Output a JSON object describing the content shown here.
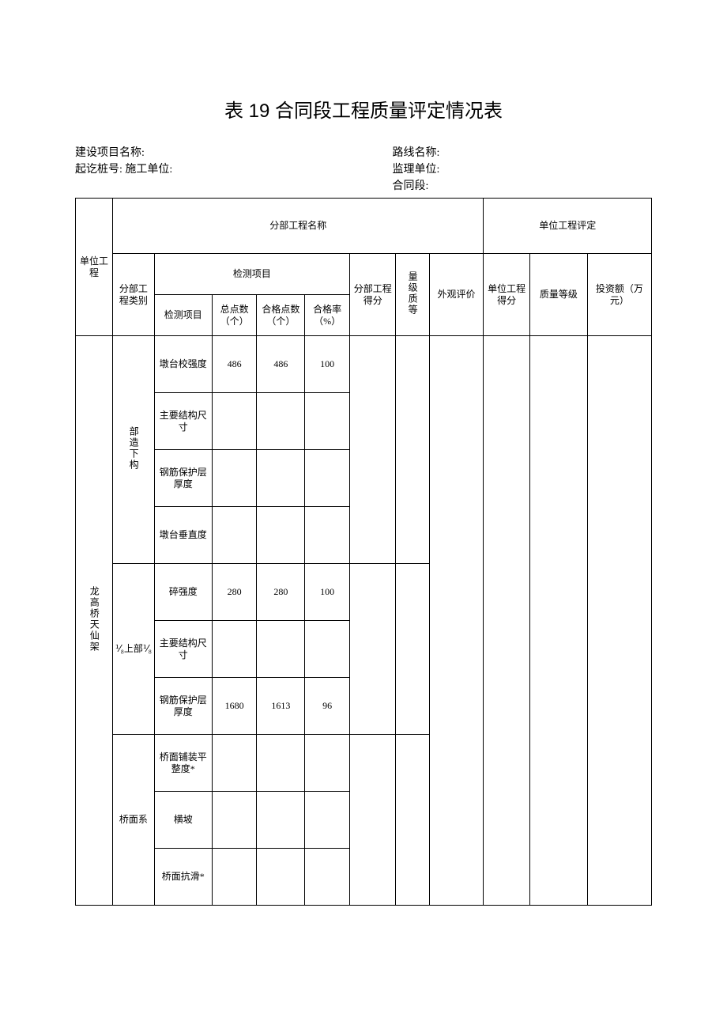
{
  "title": "表 19 合同段工程质量评定情况表",
  "meta": {
    "left1": "建设项目名称:",
    "left2": "起讫桩号: 施工单位:",
    "right1": "路线名称:",
    "right2": "监理单位:",
    "right3": "合同段:"
  },
  "headers": {
    "unit_project": "单位工程",
    "sub_project_name": "分部工程名称",
    "unit_project_eval": "单位工程评定",
    "sub_category": "分部工程类别",
    "inspection_items": "检测项目",
    "sub_score": "分部工程得分",
    "quality_level": "量级质等",
    "appearance": "外观评价",
    "unit_score": "单位工程得分",
    "quality_grade": "质量等级",
    "investment": "投资额（万元）",
    "item": "检测项目",
    "total_points": "总点数（个）",
    "pass_points": "合格点数（个）",
    "pass_rate": "合格率（%）"
  },
  "unit_name": "龙高桥天仙架",
  "groups": [
    {
      "category": "部造下构",
      "category_vertical": true,
      "rows": [
        {
          "item": "墩台校强度",
          "total": "486",
          "pass": "486",
          "rate": "100"
        },
        {
          "item": "主要结构尺寸",
          "total": "",
          "pass": "",
          "rate": ""
        },
        {
          "item": "钢筋保护层厚度",
          "total": "",
          "pass": "",
          "rate": ""
        },
        {
          "item": "墩台垂直度",
          "total": "",
          "pass": "",
          "rate": ""
        }
      ]
    },
    {
      "category": "⅟₈上部⅟₈",
      "category_vertical": false,
      "rows": [
        {
          "item": "碎强度",
          "total": "280",
          "pass": "280",
          "rate": "100"
        },
        {
          "item": "主要结构尺寸",
          "total": "",
          "pass": "",
          "rate": ""
        },
        {
          "item": "钢筋保护层厚度",
          "total": "1680",
          "pass": "1613",
          "rate": "96"
        }
      ]
    },
    {
      "category": "桥面系",
      "category_vertical": false,
      "rows": [
        {
          "item": "桥面铺装平整度*",
          "total": "",
          "pass": "",
          "rate": ""
        },
        {
          "item": "横坡",
          "total": "",
          "pass": "",
          "rate": ""
        },
        {
          "item": "桥面抗滑*",
          "total": "",
          "pass": "",
          "rate": ""
        }
      ]
    }
  ]
}
